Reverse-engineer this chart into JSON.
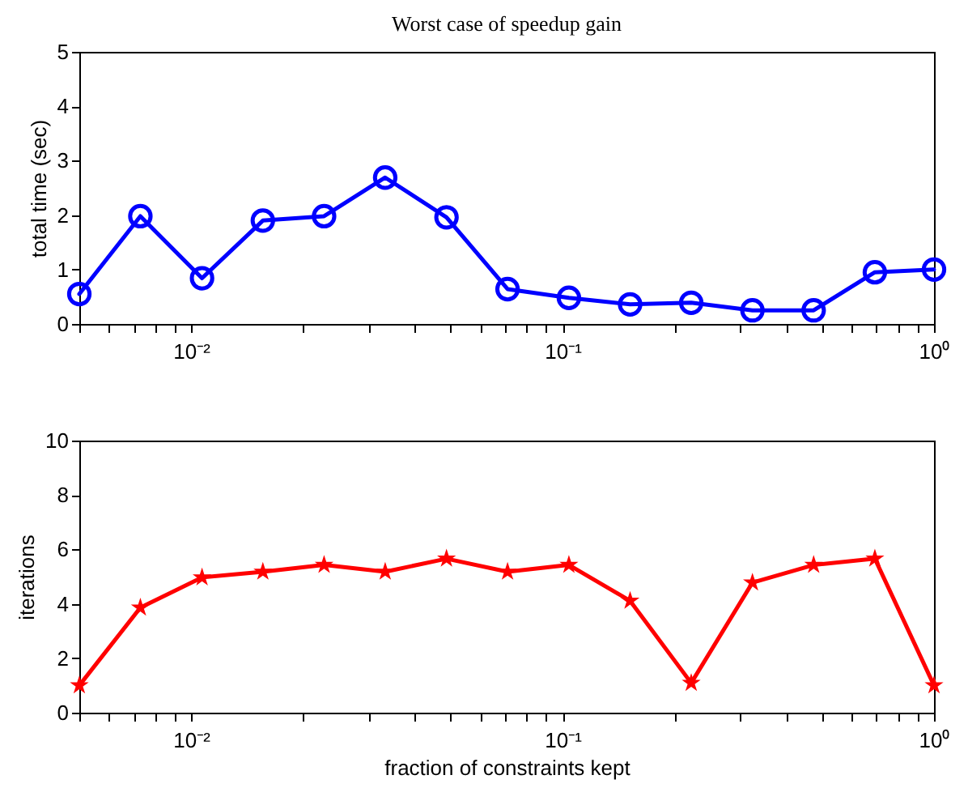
{
  "chart_data": [
    {
      "type": "line",
      "title": "Worst case of speedup gain",
      "ylabel": "total time (sec)",
      "marker": "circle",
      "line_style": "solid",
      "grid": false,
      "x": [
        0.005,
        0.0073,
        0.0107,
        0.0156,
        0.0228,
        0.0333,
        0.0487,
        0.0711,
        0.104,
        0.152,
        0.222,
        0.3245,
        0.4742,
        0.6931,
        1
      ],
      "series": [
        {
          "color": "#0000ff",
          "values": [
            0.55,
            1.98,
            0.84,
            1.9,
            1.98,
            2.69,
            1.96,
            0.64,
            0.48,
            0.36,
            0.39,
            0.25,
            0.25,
            0.95,
            1.0
          ]
        }
      ],
      "log": "x",
      "xlim": [
        0.005,
        1
      ],
      "ylim": [
        0,
        5
      ],
      "yticks": [
        0,
        1,
        2,
        3,
        4,
        5
      ],
      "xticks": [
        {
          "value": 0.005,
          "label": null
        },
        {
          "value": 0.006,
          "label": null
        },
        {
          "value": 0.007,
          "label": null
        },
        {
          "value": 0.008,
          "label": null
        },
        {
          "value": 0.009,
          "label": null
        },
        {
          "value": 0.01,
          "label": "10⁻²"
        },
        {
          "value": 0.02,
          "label": null
        },
        {
          "value": 0.03,
          "label": null
        },
        {
          "value": 0.04,
          "label": null
        },
        {
          "value": 0.05,
          "label": null
        },
        {
          "value": 0.06,
          "label": null
        },
        {
          "value": 0.07,
          "label": null
        },
        {
          "value": 0.08,
          "label": null
        },
        {
          "value": 0.09,
          "label": null
        },
        {
          "value": 0.1,
          "label": "10⁻¹"
        },
        {
          "value": 0.2,
          "label": null
        },
        {
          "value": 0.3,
          "label": null
        },
        {
          "value": 0.4,
          "label": null
        },
        {
          "value": 0.5,
          "label": null
        },
        {
          "value": 0.6,
          "label": null
        },
        {
          "value": 0.7,
          "label": null
        },
        {
          "value": 0.8,
          "label": null
        },
        {
          "value": 0.9,
          "label": null
        },
        {
          "value": 1,
          "label": "10⁰"
        }
      ]
    },
    {
      "type": "line",
      "xlabel": "fraction of constraints kept",
      "ylabel": "iterations",
      "marker": "star",
      "line_style": "solid",
      "grid": false,
      "x": [
        0.005,
        0.0073,
        0.0107,
        0.0156,
        0.0228,
        0.0333,
        0.0487,
        0.0711,
        0.104,
        0.152,
        0.222,
        0.3245,
        0.4742,
        0.6931,
        1
      ],
      "series": [
        {
          "color": "#ff0000",
          "values": [
            1.0,
            3.86,
            4.97,
            5.18,
            5.43,
            5.18,
            5.66,
            5.18,
            5.43,
            4.11,
            1.09,
            4.78,
            5.43,
            5.66,
            1.0
          ]
        }
      ],
      "log": "x",
      "xlim": [
        0.005,
        1
      ],
      "ylim": [
        0,
        10
      ],
      "yticks": [
        0,
        2,
        4,
        6,
        8,
        10
      ],
      "xticks": [
        {
          "value": 0.005,
          "label": null
        },
        {
          "value": 0.006,
          "label": null
        },
        {
          "value": 0.007,
          "label": null
        },
        {
          "value": 0.008,
          "label": null
        },
        {
          "value": 0.009,
          "label": null
        },
        {
          "value": 0.01,
          "label": "10⁻²"
        },
        {
          "value": 0.02,
          "label": null
        },
        {
          "value": 0.03,
          "label": null
        },
        {
          "value": 0.04,
          "label": null
        },
        {
          "value": 0.05,
          "label": null
        },
        {
          "value": 0.06,
          "label": null
        },
        {
          "value": 0.07,
          "label": null
        },
        {
          "value": 0.08,
          "label": null
        },
        {
          "value": 0.09,
          "label": null
        },
        {
          "value": 0.1,
          "label": "10⁻¹"
        },
        {
          "value": 0.2,
          "label": null
        },
        {
          "value": 0.3,
          "label": null
        },
        {
          "value": 0.4,
          "label": null
        },
        {
          "value": 0.5,
          "label": null
        },
        {
          "value": 0.6,
          "label": null
        },
        {
          "value": 0.7,
          "label": null
        },
        {
          "value": 0.8,
          "label": null
        },
        {
          "value": 0.9,
          "label": null
        },
        {
          "value": 1,
          "label": "10⁰"
        }
      ]
    }
  ]
}
